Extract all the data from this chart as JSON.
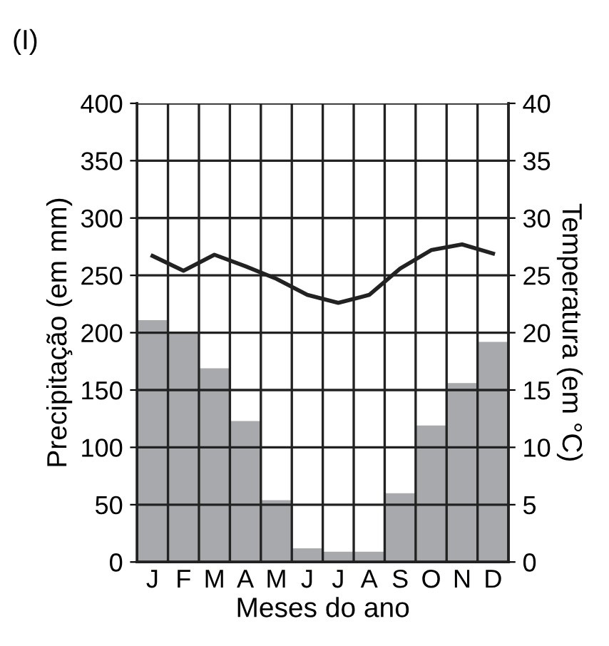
{
  "chart_data": {
    "type": "bar",
    "title": "(I)",
    "xlabel": "Meses do ano",
    "ylabel": "Precipitação (em mm)",
    "y2label": "Temperatura (em °C)",
    "categories": [
      "J",
      "F",
      "M",
      "A",
      "M",
      "J",
      "J",
      "A",
      "S",
      "O",
      "N",
      "D"
    ],
    "series": [
      {
        "color": "#a7a9ac",
        "values": [
          211,
          200,
          169,
          123,
          54,
          12,
          9,
          9,
          60,
          119,
          156,
          192
        ]
      },
      {
        "type": "line",
        "axis": "y2",
        "color": "#222222",
        "values": [
          26.7,
          25.4,
          26.8,
          25.8,
          24.7,
          23.3,
          22.6,
          23.3,
          25.6,
          27.2,
          27.7,
          26.9
        ]
      }
    ],
    "ylim": [
      0,
      400
    ],
    "yticks": [
      0,
      50,
      100,
      150,
      200,
      250,
      300,
      350,
      400
    ],
    "y2lim": [
      0,
      40
    ],
    "y2ticks": [
      0,
      5,
      10,
      15,
      20,
      25,
      30,
      35,
      40
    ],
    "grid": true
  }
}
